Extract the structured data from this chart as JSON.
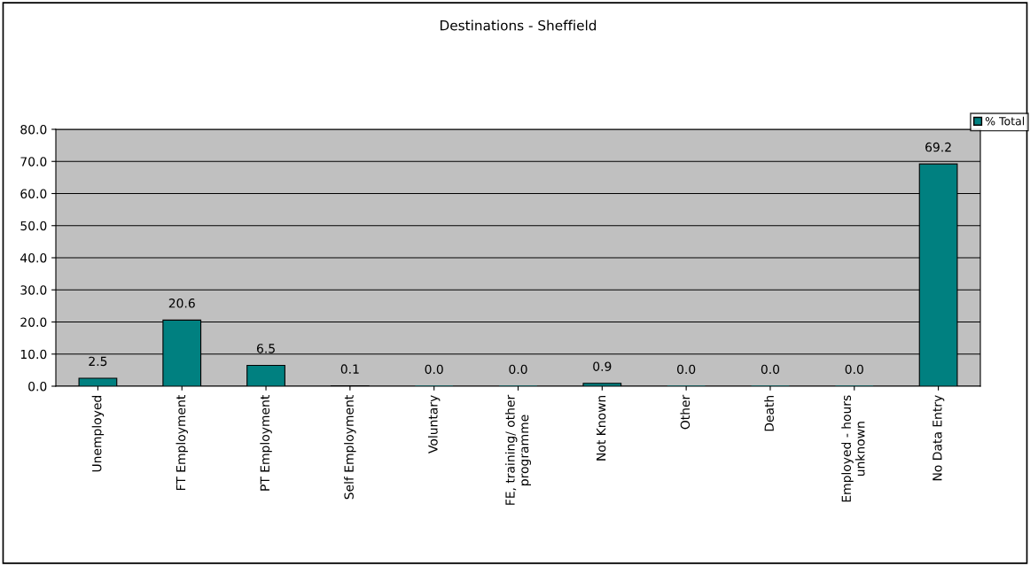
{
  "chart_data": {
    "type": "bar",
    "title": "Destinations - Sheffield",
    "categories": [
      "Unemployed",
      "FT Employment",
      "PT Employment",
      "Self Employment",
      "Voluntary",
      "FE, training/ other\nprogramme",
      "Not Known",
      "Other",
      "Death",
      "Employed - hours\nunknown",
      "No Data Entry"
    ],
    "series": [
      {
        "name": "% Total",
        "color": "#008080",
        "values": [
          2.5,
          20.6,
          6.5,
          0.1,
          0.0,
          0.0,
          0.9,
          0.0,
          0.0,
          0.0,
          69.2
        ],
        "value_labels": [
          "2.5",
          "20.6",
          "6.5",
          "0.1",
          "0.0",
          "0.0",
          "0.9",
          "0.0",
          "0.0",
          "0.0",
          "69.2"
        ]
      }
    ],
    "ylim": [
      0,
      80
    ],
    "yticks": [
      {
        "value": 0,
        "label": "0.0"
      },
      {
        "value": 10,
        "label": "10.0"
      },
      {
        "value": 20,
        "label": "20.0"
      },
      {
        "value": 30,
        "label": "30.0"
      },
      {
        "value": 40,
        "label": "40.0"
      },
      {
        "value": 50,
        "label": "50.0"
      },
      {
        "value": 60,
        "label": "60.0"
      },
      {
        "value": 70,
        "label": "70.0"
      },
      {
        "value": 80,
        "label": "80.0"
      }
    ],
    "grid": "y",
    "legend": "top right"
  }
}
